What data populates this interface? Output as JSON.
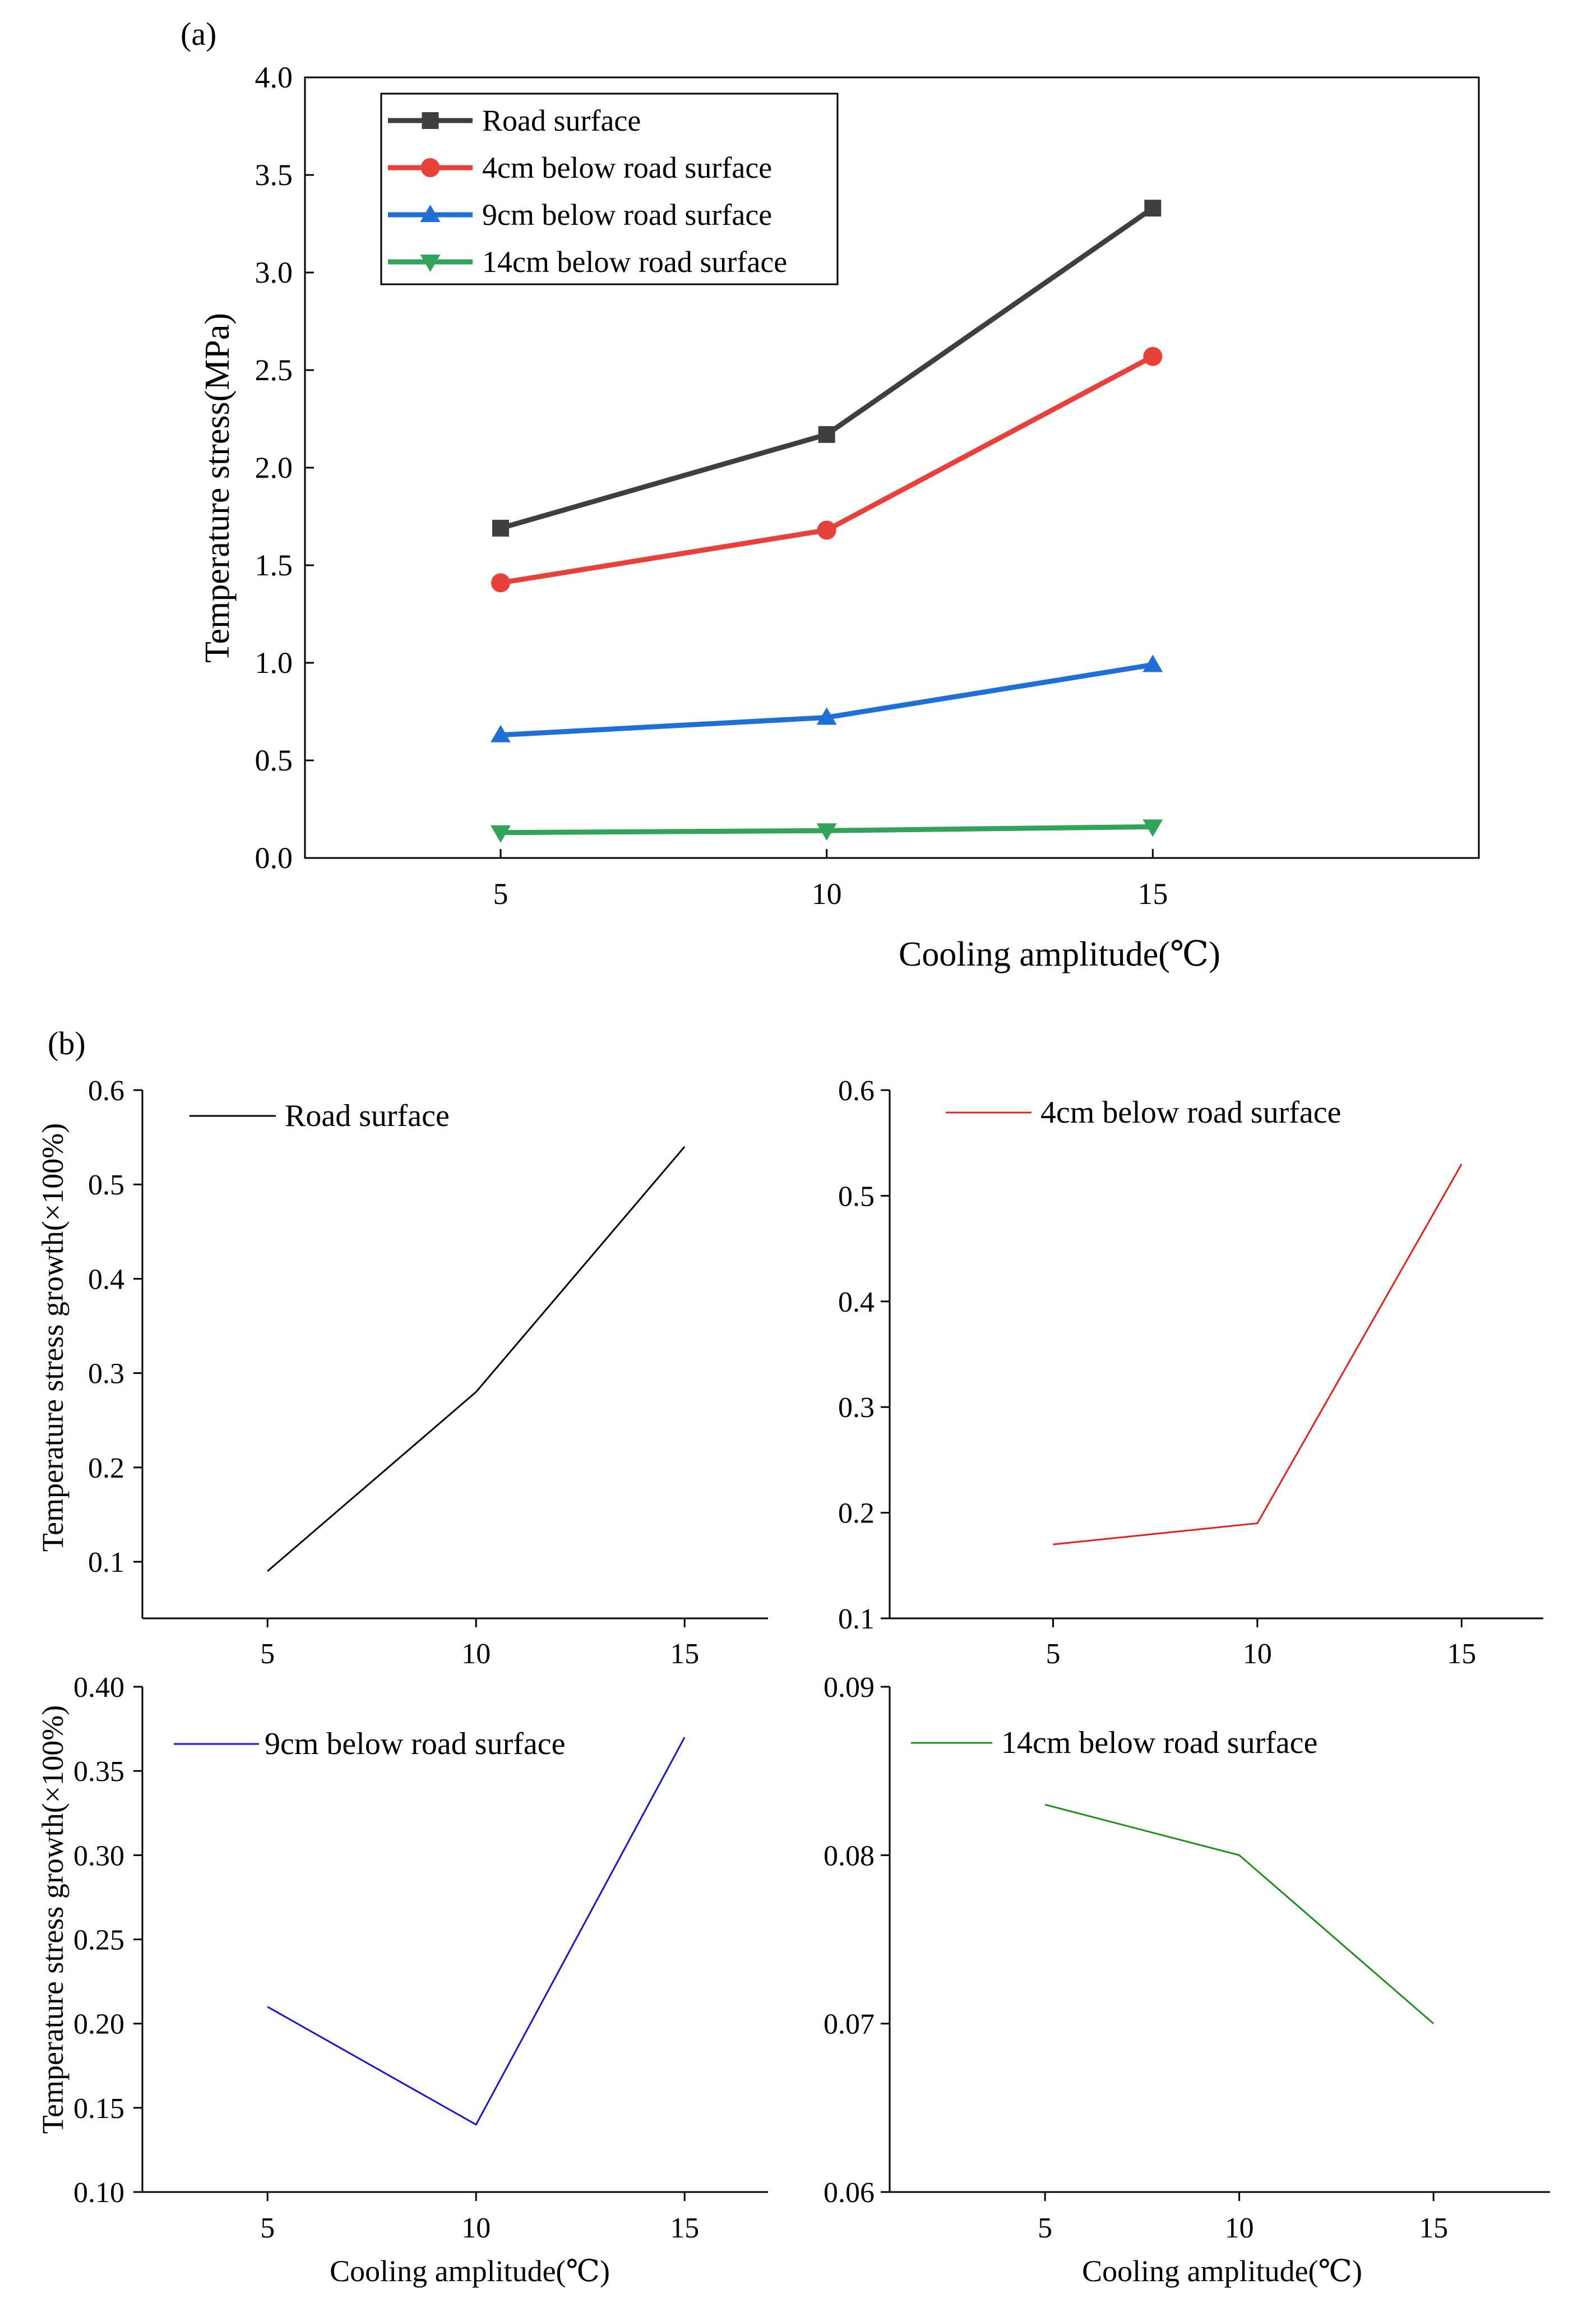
{
  "chart_data": [
    {
      "panel_label": "(a)",
      "type": "line",
      "xlabel": "Cooling amplitude(℃)",
      "ylabel": "Temperature stress(MPa)",
      "x": [
        5,
        10,
        15
      ],
      "xlim": [
        2,
        20
      ],
      "ylim": [
        0,
        4.0
      ],
      "xticks": [
        "5",
        "10",
        "15"
      ],
      "yticks": [
        "0.0",
        "0.5",
        "1.0",
        "1.5",
        "2.0",
        "2.5",
        "3.0",
        "3.5",
        "4.0"
      ],
      "legend_position": "top-left",
      "series": [
        {
          "name": "Road surface",
          "values": [
            1.69,
            2.17,
            3.33
          ],
          "color": "#3f3f3f",
          "marker": "square"
        },
        {
          "name": "4cm below road surface",
          "values": [
            1.41,
            1.68,
            2.57
          ],
          "color": "#e8413b",
          "marker": "circle"
        },
        {
          "name": "9cm below road surface",
          "values": [
            0.63,
            0.72,
            0.99
          ],
          "color": "#1f6fd6",
          "marker": "triangle-up"
        },
        {
          "name": "14cm below road surface",
          "values": [
            0.13,
            0.14,
            0.16
          ],
          "color": "#31a45a",
          "marker": "triangle-down"
        }
      ]
    },
    {
      "panel_label": "(b)",
      "type": "line",
      "xlabel": "",
      "ylabel": "Temperature stress growth(×100%)",
      "x": [
        5,
        10,
        15
      ],
      "xlim": [
        2,
        17
      ],
      "ylim": [
        0.04,
        0.6
      ],
      "xticks": [
        "5",
        "10",
        "15"
      ],
      "yticks": [
        "0.1",
        "0.2",
        "0.3",
        "0.4",
        "0.5",
        "0.6"
      ],
      "legend_position": "top-left",
      "series": [
        {
          "name": "Road surface",
          "values": [
            0.09,
            0.28,
            0.54
          ],
          "color": "#000000"
        }
      ]
    },
    {
      "type": "line",
      "xlabel": "",
      "ylabel": "",
      "x": [
        5,
        10,
        15
      ],
      "xlim": [
        1,
        17
      ],
      "ylim": [
        0.1,
        0.6
      ],
      "xticks": [
        "5",
        "10",
        "15"
      ],
      "yticks": [
        "0.1",
        "0.2",
        "0.3",
        "0.4",
        "0.5",
        "0.6"
      ],
      "legend_position": "top-left",
      "series": [
        {
          "name": "4cm below road surface",
          "values": [
            0.17,
            0.19,
            0.53
          ],
          "color": "#e8201c"
        }
      ]
    },
    {
      "type": "line",
      "xlabel": "Cooling amplitude(℃)",
      "ylabel": "Temperature stress growth(×100%)",
      "x": [
        5,
        10,
        15
      ],
      "xlim": [
        2,
        17
      ],
      "ylim": [
        0.1,
        0.4
      ],
      "xticks": [
        "5",
        "10",
        "15"
      ],
      "yticks": [
        "0.10",
        "0.15",
        "0.20",
        "0.25",
        "0.30",
        "0.35",
        "0.40"
      ],
      "legend_position": "top-left",
      "series": [
        {
          "name": "9cm below road surface",
          "values": [
            0.21,
            0.14,
            0.37
          ],
          "color": "#1515d8"
        }
      ]
    },
    {
      "type": "line",
      "xlabel": "Cooling amplitude(℃)",
      "ylabel": "",
      "x": [
        5,
        10,
        15
      ],
      "xlim": [
        1,
        18
      ],
      "ylim": [
        0.06,
        0.09
      ],
      "xticks": [
        "5",
        "10",
        "15"
      ],
      "yticks": [
        "0.06",
        "0.07",
        "0.08",
        "0.09"
      ],
      "legend_position": "top-left",
      "series": [
        {
          "name": "14cm below road surface",
          "values": [
            0.083,
            0.08,
            0.07
          ],
          "color": "#1e8f1e"
        }
      ]
    }
  ]
}
